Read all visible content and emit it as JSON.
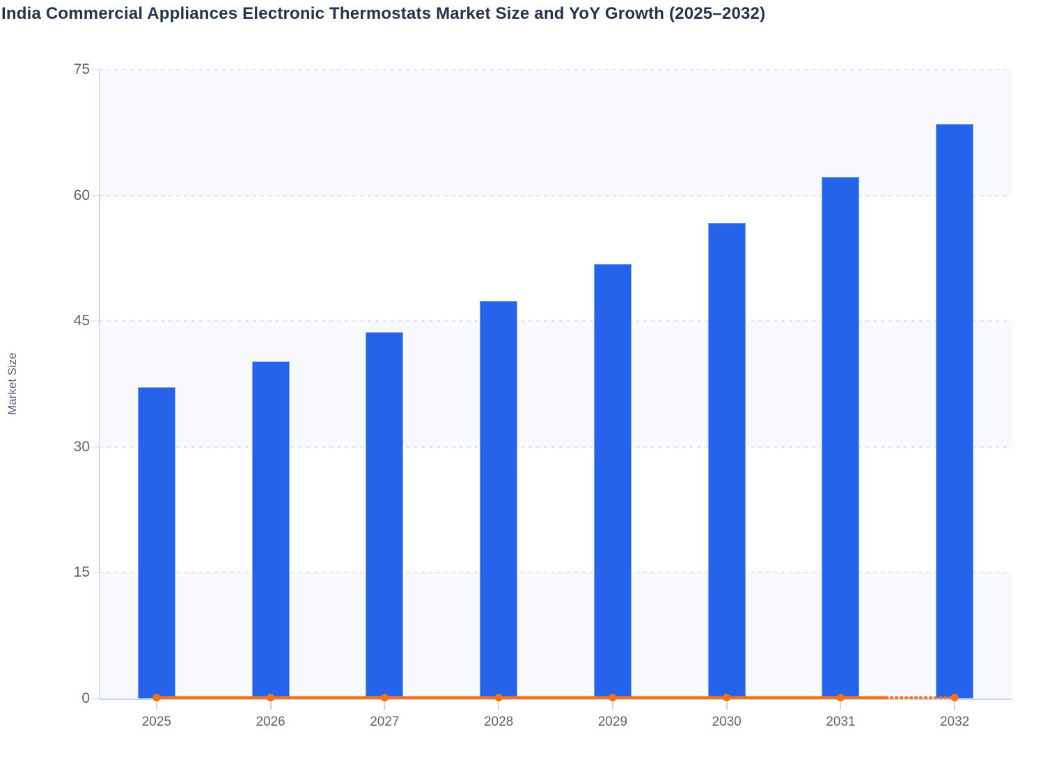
{
  "title": "India Commercial Appliances Electronic Thermostats Market Size and YoY Growth (2025–2032)",
  "colors": {
    "bar": "#2563eb",
    "line": "#f97316",
    "title_text": "#24344f",
    "axis_text": "#5a6478",
    "axis_line": "#c9d4ee",
    "gridline": "#e2e5ec",
    "band": "#f7f9fc"
  },
  "chart_data": {
    "type": "bar",
    "title": "India Commercial Appliances Electronic Thermostats Market Size and YoY Growth (2025–2032)",
    "categories": [
      "2025",
      "2026",
      "2027",
      "2028",
      "2029",
      "2030",
      "2031",
      "2032"
    ],
    "series": [
      {
        "name": "Market Size",
        "type": "bar",
        "values": [
          37.1,
          40.2,
          43.7,
          47.4,
          51.8,
          56.7,
          62.2,
          68.5
        ]
      },
      {
        "name": "YoY Growth",
        "type": "line",
        "values_on_axis": [
          0.1,
          0.1,
          0.1,
          0.1,
          0.1,
          0.1,
          0.1,
          0.1
        ],
        "note": "YoY growth line renders flat at ~0 on the Market Size axis; the segment between 2031 and 2032 is dotted, all other segments solid, round orange markers at every year"
      }
    ],
    "xlabel": "",
    "ylabel": "Market Size",
    "ylim": [
      0,
      75
    ],
    "y_ticks": [
      0,
      15,
      30,
      45,
      60,
      75
    ],
    "grid": true,
    "legend": false,
    "background_bands": [
      [
        0,
        15
      ],
      [
        30,
        45
      ],
      [
        60,
        75
      ]
    ]
  }
}
